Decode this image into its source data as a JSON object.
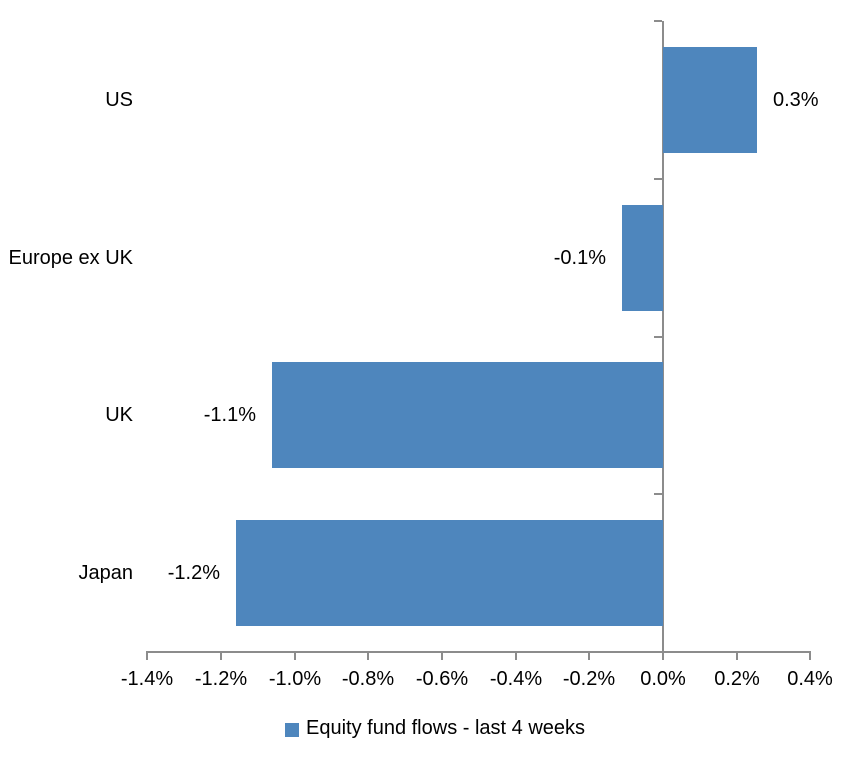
{
  "chart_data": {
    "type": "bar",
    "orientation": "horizontal",
    "title": "",
    "xlabel": "",
    "ylabel": "",
    "categories": [
      "US",
      "Europe ex UK",
      "UK",
      "Japan"
    ],
    "values": [
      0.3,
      -0.1,
      -1.1,
      -1.2
    ],
    "value_labels": [
      "0.3%",
      "-0.1%",
      "-1.1%",
      "-1.2%"
    ],
    "bar_extents": [
      0.255,
      -0.112,
      -1.06,
      -1.16
    ],
    "series": [
      {
        "name": "Equity fund flows - last 4 weeks",
        "values": [
          0.3,
          -0.1,
          -1.1,
          -1.2
        ]
      }
    ],
    "xlim": [
      -1.4,
      0.4
    ],
    "x_tick_step": 0.2,
    "x_tick_labels": [
      "-1.4%",
      "-1.2%",
      "-1.0%",
      "-0.8%",
      "-0.6%",
      "-0.4%",
      "-0.2%",
      "0.0%",
      "0.2%",
      "0.4%"
    ],
    "grid": false,
    "legend_position": "bottom",
    "bar_color": "#4E86BD",
    "axis_color": "#8C8C8C",
    "text_color": "#000000",
    "background_color": "#FFFFFF"
  },
  "legend": {
    "label": "Equity fund flows - last 4 weeks",
    "swatch_color": "#4E86BD"
  }
}
